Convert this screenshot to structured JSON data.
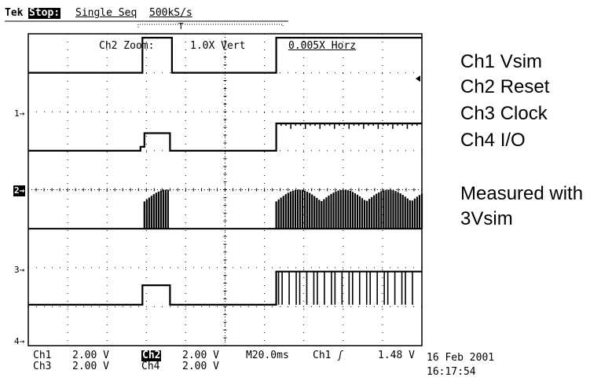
{
  "header": {
    "brand": "Tek",
    "state": "Stop:",
    "mode": "Single Seq",
    "rate": "500kS/s"
  },
  "zoom_readout": {
    "label": "Ch2 Zoom:",
    "vert": "1.0X Vert",
    "horz": "0.005X Horz"
  },
  "trigger_marker": "T",
  "channel_markers": [
    "1",
    "2",
    "3",
    "4"
  ],
  "settings": {
    "row1": [
      "Ch1",
      "2.00 V",
      "Ch2",
      "2.00 V",
      "M20.0ms",
      "Ch1",
      "1.48 V"
    ],
    "row2": [
      "Ch3",
      "2.00 V",
      "Ch4",
      "2.00 V"
    ]
  },
  "timestamp": {
    "date": "16 Feb 2001",
    "time": "16:17:54"
  },
  "legend": {
    "lines": [
      "Ch1 Vsim",
      "Ch2 Reset",
      "Ch3 Clock",
      "Ch4 I/O"
    ],
    "note1": "Measured with",
    "note2": "3Vsim"
  },
  "colors": {
    "trace": "#000000",
    "grid": "#000000",
    "background": "#ffffff"
  },
  "chart_data": {
    "type": "line",
    "x_unit": "div",
    "xlim": [
      0,
      10
    ],
    "ylim": [
      -4,
      4
    ],
    "grid": true,
    "series": [
      {
        "name": "Ch1 Vsim",
        "baseline": 3.0,
        "x": [
          0,
          2.9,
          2.9,
          3.65,
          3.65,
          6.3,
          6.3,
          10
        ],
        "y": [
          3.0,
          3.0,
          3.9,
          3.9,
          3.0,
          3.0,
          3.9,
          3.9
        ]
      },
      {
        "name": "Ch2 Reset",
        "baseline": 1.0,
        "x": [
          0,
          2.85,
          2.85,
          2.95,
          2.95,
          3.6,
          3.6,
          6.3,
          6.3,
          10
        ],
        "y": [
          1.0,
          1.0,
          1.1,
          1.1,
          1.45,
          1.45,
          1.0,
          1.0,
          1.7,
          1.7
        ]
      },
      {
        "name": "Ch3 Clock",
        "baseline": -1.0,
        "bursts": [
          [
            2.95,
            3.55
          ],
          [
            6.3,
            10.0
          ]
        ],
        "y_low": -1.0,
        "y_high": -0.5
      },
      {
        "name": "Ch4 I/O",
        "baseline": -2.95,
        "x": [
          0,
          2.9,
          2.9,
          3.6,
          3.6,
          6.3,
          6.3,
          10
        ],
        "y": [
          -2.95,
          -2.95,
          -2.45,
          -2.45,
          -2.95,
          -2.95,
          -2.1,
          -2.1
        ]
      }
    ]
  }
}
